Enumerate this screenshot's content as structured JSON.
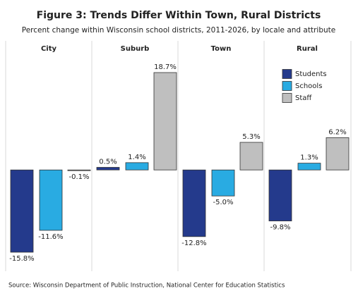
{
  "chart_data": {
    "type": "bar",
    "title": "Figure 3: Trends Differ Within Town, Rural Districts",
    "subtitle": "Percent change within Wisconsin school districts, 2011-2026, by locale and attribute",
    "categories": [
      "City",
      "Suburb",
      "Town",
      "Rural"
    ],
    "series": [
      {
        "name": "Students",
        "color": "#243a8c",
        "values": [
          -15.8,
          0.5,
          -12.8,
          -9.8
        ],
        "value_labels": [
          "-15.8%",
          "0.5%",
          "-12.8%",
          "-9.8%"
        ]
      },
      {
        "name": "Schools",
        "color": "#29abe2",
        "values": [
          -11.6,
          1.4,
          -5.0,
          1.3
        ],
        "value_labels": [
          "-11.6%",
          "1.4%",
          "-5.0%",
          "1.3%"
        ]
      },
      {
        "name": "Staff",
        "color": "#bfbfbf",
        "values": [
          -0.1,
          18.7,
          5.3,
          6.2
        ],
        "value_labels": [
          "-0.1%",
          "18.7%",
          "5.3%",
          "6.2%"
        ]
      }
    ],
    "source": "Source: Wisconsin Department of Public Instruction, National Center for Education Statistics"
  }
}
